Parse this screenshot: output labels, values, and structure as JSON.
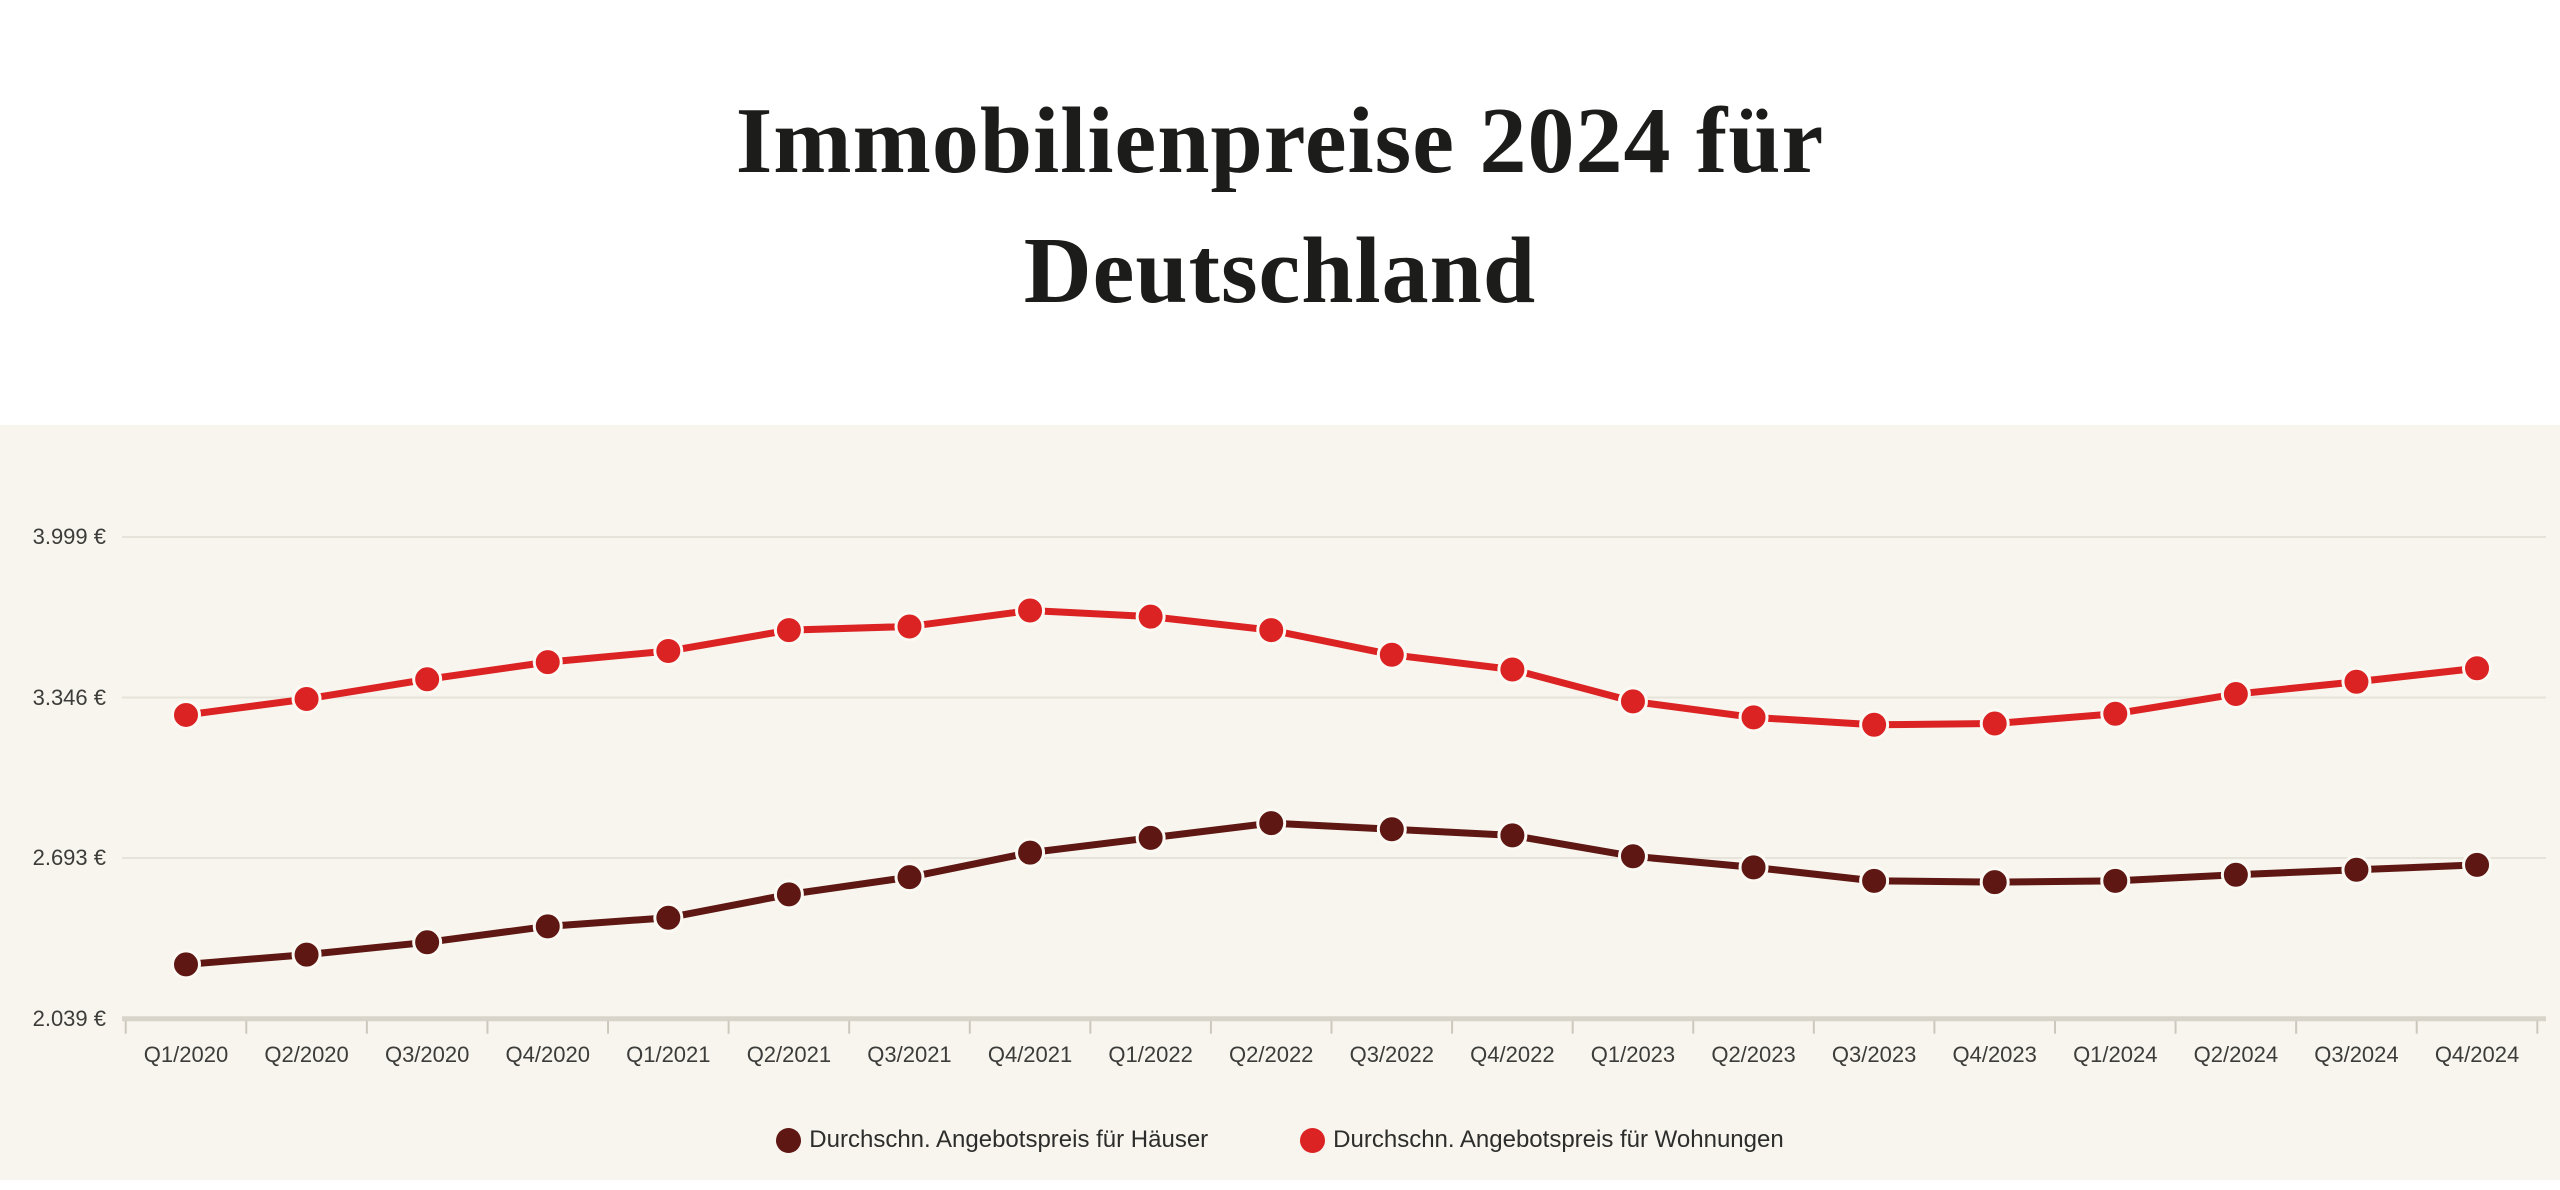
{
  "title": "Immobilienpreise 2024 für Deutschland",
  "colors": {
    "houses_series": "#5E1712",
    "apartments_series": "#DC2323",
    "panel_background": "#F8F5EE",
    "gridline": "#E6E3DA",
    "axis_line": "#D8D4CA",
    "tick_text": "#3C3C3A"
  },
  "chart_data": {
    "type": "line",
    "title": "Immobilienpreise 2024 für Deutschland",
    "xlabel": "",
    "ylabel": "",
    "grid": "horizontal",
    "legend_position": "bottom-center",
    "ylim": [
      2039,
      3999
    ],
    "y_ticks": [
      {
        "label": "3.999 €",
        "value": 3999
      },
      {
        "label": "3.346 €",
        "value": 3346
      },
      {
        "label": "2.693 €",
        "value": 2693
      },
      {
        "label": "2.039 €",
        "value": 2039
      }
    ],
    "categories": [
      "Q1/2020",
      "Q2/2020",
      "Q3/2020",
      "Q4/2020",
      "Q1/2021",
      "Q2/2021",
      "Q3/2021",
      "Q4/2021",
      "Q1/2022",
      "Q2/2022",
      "Q3/2022",
      "Q4/2022",
      "Q1/2023",
      "Q2/2023",
      "Q3/2023",
      "Q4/2023",
      "Q1/2024",
      "Q2/2024",
      "Q3/2024",
      "Q4/2024"
    ],
    "series": [
      {
        "name": "Durchschn. Angebotspreis für Häuser",
        "color": "#5E1712",
        "values": [
          2260,
          2300,
          2350,
          2415,
          2450,
          2545,
          2615,
          2715,
          2775,
          2835,
          2810,
          2785,
          2700,
          2655,
          2600,
          2595,
          2600,
          2625,
          2645,
          2665
        ]
      },
      {
        "name": "Durchschn. Angebotspreis für Wohnungen",
        "color": "#DC2323",
        "values": [
          3275,
          3340,
          3420,
          3490,
          3535,
          3620,
          3635,
          3700,
          3675,
          3620,
          3520,
          3460,
          3330,
          3265,
          3235,
          3240,
          3280,
          3360,
          3410,
          3465
        ]
      }
    ]
  },
  "legend": {
    "items": [
      {
        "label": "Durchschn. Angebotspreis für Häuser",
        "color": "#5E1712"
      },
      {
        "label": "Durchschn. Angebotspreis für Wohnungen",
        "color": "#DC2323"
      }
    ]
  }
}
